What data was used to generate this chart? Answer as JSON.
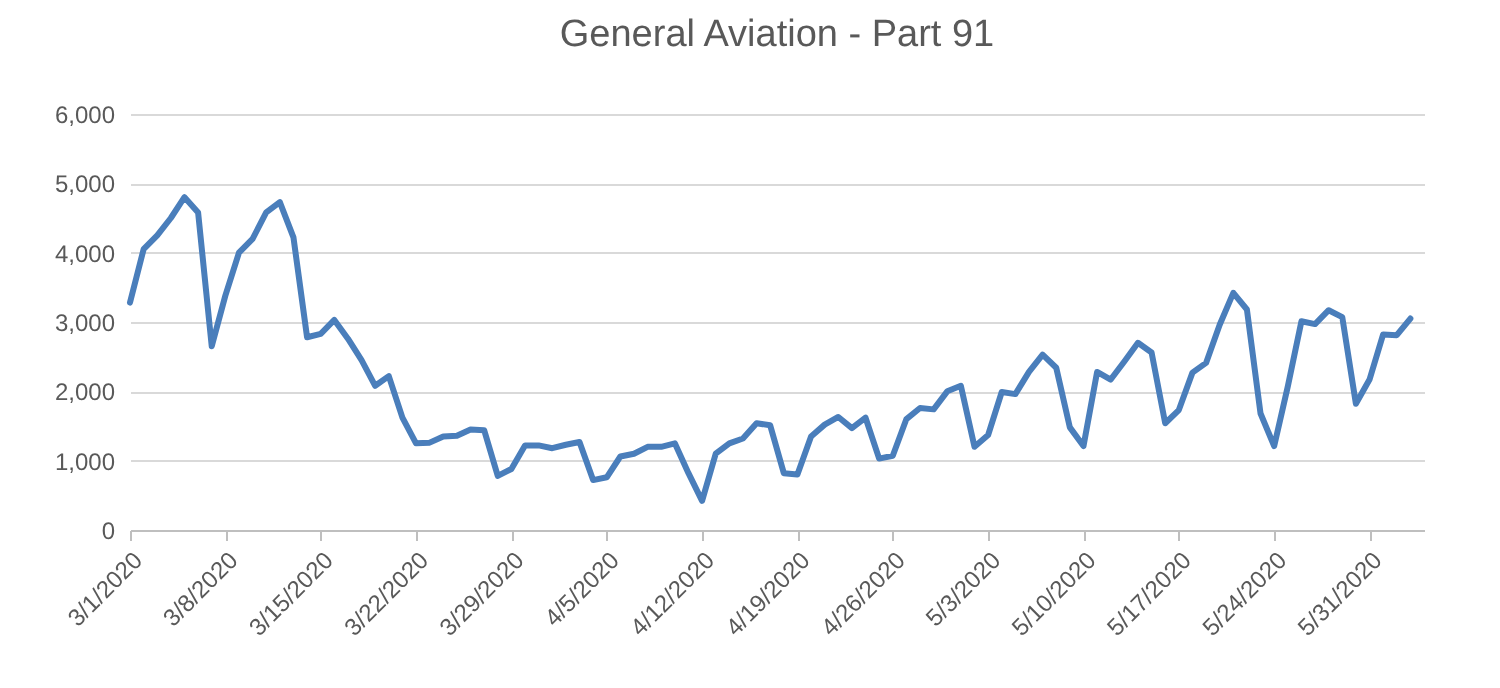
{
  "chart_data": {
    "type": "line",
    "title": "General Aviation - Part 91",
    "x": [
      "2020-03-01",
      "2020-03-02",
      "2020-03-03",
      "2020-03-04",
      "2020-03-05",
      "2020-03-06",
      "2020-03-07",
      "2020-03-08",
      "2020-03-09",
      "2020-03-10",
      "2020-03-11",
      "2020-03-12",
      "2020-03-13",
      "2020-03-14",
      "2020-03-15",
      "2020-03-16",
      "2020-03-17",
      "2020-03-18",
      "2020-03-19",
      "2020-03-20",
      "2020-03-21",
      "2020-03-22",
      "2020-03-23",
      "2020-03-24",
      "2020-03-25",
      "2020-03-26",
      "2020-03-27",
      "2020-03-28",
      "2020-03-29",
      "2020-03-30",
      "2020-03-31",
      "2020-04-01",
      "2020-04-02",
      "2020-04-03",
      "2020-04-04",
      "2020-04-05",
      "2020-04-06",
      "2020-04-07",
      "2020-04-08",
      "2020-04-09",
      "2020-04-10",
      "2020-04-11",
      "2020-04-12",
      "2020-04-13",
      "2020-04-14",
      "2020-04-15",
      "2020-04-16",
      "2020-04-17",
      "2020-04-18",
      "2020-04-19",
      "2020-04-20",
      "2020-04-21",
      "2020-04-22",
      "2020-04-23",
      "2020-04-24",
      "2020-04-25",
      "2020-04-26",
      "2020-04-27",
      "2020-04-28",
      "2020-04-29",
      "2020-04-30",
      "2020-05-01",
      "2020-05-02",
      "2020-05-03",
      "2020-05-04",
      "2020-05-05",
      "2020-05-06",
      "2020-05-07",
      "2020-05-08",
      "2020-05-09",
      "2020-05-10",
      "2020-05-11",
      "2020-05-12",
      "2020-05-13",
      "2020-05-14",
      "2020-05-15",
      "2020-05-16",
      "2020-05-17",
      "2020-05-18",
      "2020-05-19",
      "2020-05-20",
      "2020-05-21",
      "2020-05-22",
      "2020-05-23",
      "2020-05-24",
      "2020-05-25",
      "2020-05-26",
      "2020-05-27",
      "2020-05-28",
      "2020-05-29",
      "2020-05-30",
      "2020-05-31",
      "2020-06-01",
      "2020-06-02",
      "2020-06-03"
    ],
    "series": [
      {
        "color": "#4a7ebb",
        "values": [
          3280,
          4050,
          4250,
          4500,
          4800,
          4580,
          2650,
          3380,
          4000,
          4200,
          4580,
          4730,
          4220,
          2780,
          2830,
          3030,
          2760,
          2450,
          2080,
          2220,
          1620,
          1250,
          1260,
          1350,
          1360,
          1450,
          1440,
          780,
          880,
          1220,
          1220,
          1180,
          1230,
          1270,
          720,
          760,
          1060,
          1100,
          1200,
          1200,
          1250,
          820,
          420,
          1100,
          1250,
          1320,
          1540,
          1510,
          820,
          800,
          1350,
          1520,
          1630,
          1470,
          1620,
          1030,
          1070,
          1600,
          1760,
          1740,
          2000,
          2080,
          1200,
          1370,
          1990,
          1960,
          2280,
          2530,
          2340,
          1480,
          1210,
          2280,
          2170,
          2430,
          2700,
          2560,
          1540,
          1730,
          2270,
          2410,
          2960,
          3420,
          3180,
          1680,
          1210,
          2070,
          3010,
          2970,
          3170,
          3070,
          1820,
          2170,
          2820,
          2810,
          3050
        ]
      }
    ],
    "xlim": [
      "2020-03-01",
      "2020-06-04"
    ],
    "xticks": [
      {
        "value": "2020-03-01",
        "label": "3/1/2020"
      },
      {
        "value": "2020-03-08",
        "label": "3/8/2020"
      },
      {
        "value": "2020-03-15",
        "label": "3/15/2020"
      },
      {
        "value": "2020-03-22",
        "label": "3/22/2020"
      },
      {
        "value": "2020-03-29",
        "label": "3/29/2020"
      },
      {
        "value": "2020-04-05",
        "label": "4/5/2020"
      },
      {
        "value": "2020-04-12",
        "label": "4/12/2020"
      },
      {
        "value": "2020-04-19",
        "label": "4/19/2020"
      },
      {
        "value": "2020-04-26",
        "label": "4/26/2020"
      },
      {
        "value": "2020-05-03",
        "label": "5/3/2020"
      },
      {
        "value": "2020-05-10",
        "label": "5/10/2020"
      },
      {
        "value": "2020-05-17",
        "label": "5/17/2020"
      },
      {
        "value": "2020-05-24",
        "label": "5/24/2020"
      },
      {
        "value": "2020-05-31",
        "label": "5/31/2020"
      }
    ],
    "ylim": [
      0,
      6000
    ],
    "yticks": [
      0,
      {
        "value": 1000,
        "label": "1,000"
      },
      {
        "value": 2000,
        "label": "2,000"
      },
      {
        "value": 3000,
        "label": "3,000"
      },
      {
        "value": 4000,
        "label": "4,000"
      },
      {
        "value": 5000,
        "label": "5,000"
      },
      {
        "value": 6000,
        "label": "6,000"
      }
    ],
    "grid": "y",
    "line_style": "solid"
  }
}
